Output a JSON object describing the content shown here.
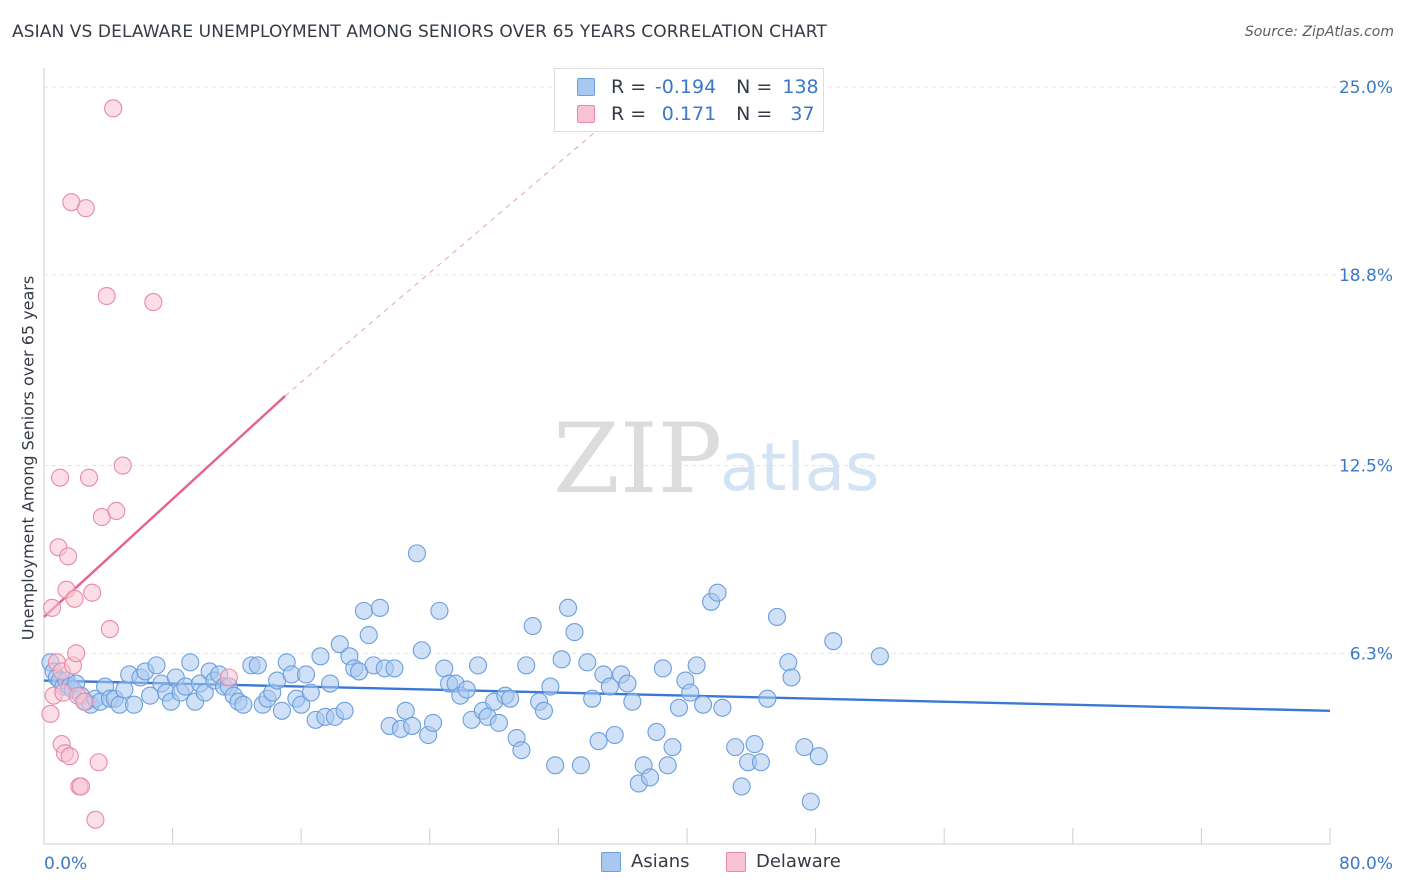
{
  "title": "ASIAN VS DELAWARE UNEMPLOYMENT AMONG SENIORS OVER 65 YEARS CORRELATION CHART",
  "source": "Source: ZipAtlas.com",
  "watermark": {
    "part1": "ZIP",
    "part2": "atlas"
  },
  "legend": {
    "rows": [
      {
        "r_label": "R =",
        "r_value": "-0.194",
        "n_label": "N =",
        "n_value": "138",
        "color": "#a9c8f0",
        "border": "#6a9fdc"
      },
      {
        "r_label": "R =",
        "r_value": "0.171",
        "n_label": "N =",
        "n_value": "37",
        "color": "#f8c3d2",
        "border": "#e88aa8"
      }
    ]
  },
  "bottom_legend": [
    {
      "label": "Asians",
      "color": "#a9c8f0",
      "border": "#6a9fdc"
    },
    {
      "label": "Delaware",
      "color": "#f8c3d2",
      "border": "#e88aa8"
    }
  ],
  "chart_data": {
    "type": "scatter",
    "title": "ASIAN VS DELAWARE UNEMPLOYMENT AMONG SENIORS OVER 65 YEARS CORRELATION CHART",
    "xlabel": "",
    "ylabel": "Unemployment Among Seniors over 65 years",
    "xlim": [
      0,
      80
    ],
    "ylim": [
      0,
      25.5
    ],
    "x_tick_labels": [
      "0.0%",
      "80.0%"
    ],
    "y_ticks": [
      6.3,
      12.5,
      18.8,
      25.0
    ],
    "y_tick_labels": [
      "6.3%",
      "12.5%",
      "18.8%",
      "25.0%"
    ],
    "grid": true,
    "series": [
      {
        "name": "Asians",
        "color": "#6a9fdc",
        "fill": "#a9c8f0",
        "trend": {
          "x0": 0,
          "y0": 5.4,
          "x1": 80,
          "y1": 4.4
        },
        "points": [
          [
            0.4,
            6.0
          ],
          [
            0.6,
            5.7
          ],
          [
            0.8,
            5.5
          ],
          [
            1.0,
            5.4
          ],
          [
            1.2,
            5.2
          ],
          [
            1.4,
            5.4
          ],
          [
            1.6,
            5.2
          ],
          [
            1.8,
            5.1
          ],
          [
            2.0,
            5.3
          ],
          [
            2.3,
            4.9
          ],
          [
            2.6,
            4.7
          ],
          [
            2.9,
            4.6
          ],
          [
            3.2,
            4.8
          ],
          [
            3.5,
            4.7
          ],
          [
            3.8,
            5.2
          ],
          [
            4.1,
            4.8
          ],
          [
            4.4,
            4.8
          ],
          [
            4.7,
            4.6
          ],
          [
            5.0,
            5.1
          ],
          [
            5.3,
            5.6
          ],
          [
            5.6,
            4.6
          ],
          [
            6.0,
            5.5
          ],
          [
            6.3,
            5.7
          ],
          [
            6.6,
            4.9
          ],
          [
            7.0,
            5.9
          ],
          [
            7.3,
            5.3
          ],
          [
            7.6,
            5.0
          ],
          [
            7.9,
            4.7
          ],
          [
            8.2,
            5.5
          ],
          [
            8.5,
            5.0
          ],
          [
            8.8,
            5.2
          ],
          [
            9.1,
            6.0
          ],
          [
            9.4,
            4.7
          ],
          [
            9.7,
            5.3
          ],
          [
            10.0,
            5.0
          ],
          [
            10.3,
            5.7
          ],
          [
            10.6,
            5.4
          ],
          [
            10.9,
            5.6
          ],
          [
            11.2,
            5.2
          ],
          [
            11.5,
            5.2
          ],
          [
            11.8,
            4.9
          ],
          [
            12.1,
            4.7
          ],
          [
            12.4,
            4.6
          ],
          [
            12.9,
            5.9
          ],
          [
            13.3,
            5.9
          ],
          [
            13.6,
            4.6
          ],
          [
            13.9,
            4.8
          ],
          [
            14.2,
            5.0
          ],
          [
            14.5,
            5.4
          ],
          [
            14.8,
            4.4
          ],
          [
            15.1,
            6.0
          ],
          [
            15.4,
            5.6
          ],
          [
            15.7,
            4.8
          ],
          [
            16.0,
            4.6
          ],
          [
            16.3,
            5.6
          ],
          [
            16.6,
            5.0
          ],
          [
            16.9,
            4.1
          ],
          [
            17.2,
            6.2
          ],
          [
            17.5,
            4.2
          ],
          [
            17.8,
            5.3
          ],
          [
            18.1,
            4.2
          ],
          [
            18.4,
            6.6
          ],
          [
            18.7,
            4.4
          ],
          [
            19.0,
            6.2
          ],
          [
            19.3,
            5.8
          ],
          [
            19.6,
            5.7
          ],
          [
            19.9,
            7.7
          ],
          [
            20.2,
            6.9
          ],
          [
            20.5,
            5.9
          ],
          [
            20.9,
            7.8
          ],
          [
            21.2,
            5.8
          ],
          [
            21.5,
            3.9
          ],
          [
            21.8,
            5.8
          ],
          [
            22.2,
            3.8
          ],
          [
            22.5,
            4.4
          ],
          [
            22.9,
            3.9
          ],
          [
            23.2,
            9.6
          ],
          [
            23.5,
            6.4
          ],
          [
            23.9,
            3.6
          ],
          [
            24.2,
            4.0
          ],
          [
            24.6,
            7.7
          ],
          [
            24.9,
            5.8
          ],
          [
            25.2,
            5.3
          ],
          [
            25.6,
            5.3
          ],
          [
            25.9,
            4.9
          ],
          [
            26.3,
            5.1
          ],
          [
            26.6,
            4.1
          ],
          [
            27.0,
            5.9
          ],
          [
            27.3,
            4.4
          ],
          [
            27.6,
            4.2
          ],
          [
            28.0,
            4.7
          ],
          [
            28.3,
            4.0
          ],
          [
            28.7,
            4.9
          ],
          [
            29.0,
            4.8
          ],
          [
            29.4,
            3.5
          ],
          [
            29.7,
            3.1
          ],
          [
            30.0,
            5.9
          ],
          [
            30.4,
            7.2
          ],
          [
            30.8,
            4.7
          ],
          [
            31.1,
            4.4
          ],
          [
            31.5,
            5.2
          ],
          [
            31.8,
            2.6
          ],
          [
            32.2,
            6.1
          ],
          [
            32.6,
            7.8
          ],
          [
            33.0,
            7.0
          ],
          [
            33.4,
            2.6
          ],
          [
            33.8,
            6.0
          ],
          [
            34.1,
            4.8
          ],
          [
            34.5,
            3.4
          ],
          [
            34.8,
            5.6
          ],
          [
            35.2,
            5.2
          ],
          [
            35.5,
            3.6
          ],
          [
            35.9,
            5.6
          ],
          [
            36.3,
            5.3
          ],
          [
            36.6,
            4.7
          ],
          [
            37.0,
            2.0
          ],
          [
            37.3,
            2.6
          ],
          [
            37.7,
            2.2
          ],
          [
            38.1,
            3.7
          ],
          [
            38.5,
            5.8
          ],
          [
            38.8,
            2.6
          ],
          [
            39.1,
            3.2
          ],
          [
            39.5,
            4.5
          ],
          [
            39.9,
            5.4
          ],
          [
            40.2,
            5.0
          ],
          [
            40.6,
            5.9
          ],
          [
            41.0,
            4.6
          ],
          [
            41.5,
            8.0
          ],
          [
            41.9,
            8.3
          ],
          [
            42.2,
            4.5
          ],
          [
            43.0,
            3.2
          ],
          [
            43.4,
            1.9
          ],
          [
            43.8,
            2.7
          ],
          [
            44.2,
            3.3
          ],
          [
            44.6,
            2.7
          ],
          [
            45.0,
            4.8
          ],
          [
            45.6,
            7.5
          ],
          [
            46.3,
            6.0
          ],
          [
            46.5,
            5.5
          ],
          [
            47.3,
            3.2
          ],
          [
            47.7,
            1.4
          ],
          [
            48.2,
            2.9
          ],
          [
            49.1,
            6.7
          ],
          [
            52.0,
            6.2
          ]
        ]
      },
      {
        "name": "Delaware",
        "color": "#e88aa8",
        "fill": "#f8c3d2",
        "trend": {
          "x0": 0,
          "y0": 7.5,
          "x1": 15,
          "y1": 14.8
        },
        "trend_ext": {
          "x0": 15,
          "y0": 14.8,
          "x1": 38,
          "y1": 25.2
        },
        "points": [
          [
            0.4,
            4.3
          ],
          [
            0.5,
            7.8
          ],
          [
            0.6,
            4.9
          ],
          [
            0.8,
            6.0
          ],
          [
            0.9,
            9.8
          ],
          [
            1.0,
            12.1
          ],
          [
            1.1,
            3.3
          ],
          [
            1.1,
            5.7
          ],
          [
            1.2,
            5.0
          ],
          [
            1.3,
            3.0
          ],
          [
            1.4,
            8.4
          ],
          [
            1.5,
            9.5
          ],
          [
            1.6,
            2.9
          ],
          [
            1.7,
            21.2
          ],
          [
            1.8,
            5.9
          ],
          [
            1.9,
            8.1
          ],
          [
            2.0,
            6.3
          ],
          [
            2.1,
            4.9
          ],
          [
            2.2,
            1.9
          ],
          [
            2.3,
            1.9
          ],
          [
            2.5,
            4.7
          ],
          [
            2.6,
            21.0
          ],
          [
            2.8,
            12.1
          ],
          [
            3.0,
            8.3
          ],
          [
            3.2,
            0.8
          ],
          [
            3.4,
            2.7
          ],
          [
            3.6,
            10.8
          ],
          [
            3.9,
            18.1
          ],
          [
            4.1,
            7.1
          ],
          [
            4.3,
            24.3
          ],
          [
            4.5,
            11.0
          ],
          [
            4.9,
            12.5
          ],
          [
            6.8,
            17.9
          ],
          [
            11.5,
            5.5
          ]
        ]
      }
    ]
  }
}
